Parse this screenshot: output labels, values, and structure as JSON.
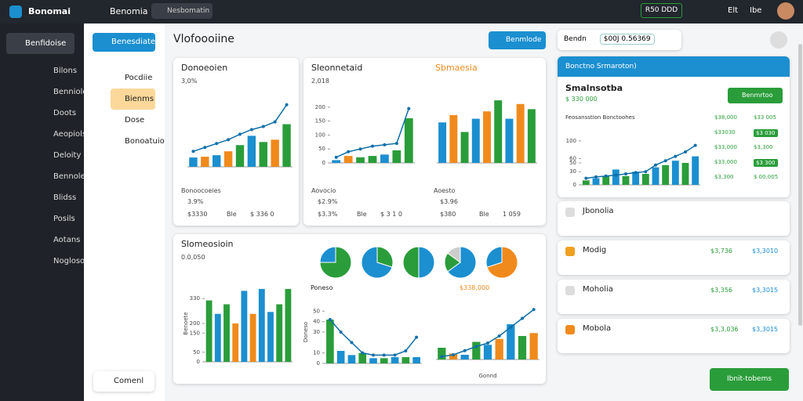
{
  "topbar": {
    "logo": "Bonomai",
    "app": "Benomia",
    "tab": "Nesbomatin",
    "button": "R50 DDD",
    "links": [
      "Elt",
      "Ibe"
    ]
  },
  "sidebar": {
    "title": "Benfidoise",
    "items": [
      "Bilons",
      "Benniolo",
      "Doots",
      "Aeopiols",
      "Deloity",
      "Bennole",
      "Blidss",
      "Posils",
      "Aotans",
      "Noglosotiee"
    ]
  },
  "subnav": {
    "button": "Benesdiate",
    "items": [
      "Pocdiie",
      "Bienms",
      "Dose",
      "Bonoatuio"
    ],
    "footer": "Comenl"
  },
  "main": {
    "title": "Vlofoooiine",
    "button": "Benmlode",
    "search_label": "Bendn",
    "search_value": "$00J 0.56369"
  },
  "charts": [
    {
      "title": "Donoeoien",
      "subtitle": "3,0%",
      "ylim": [
        0,
        100
      ],
      "values": [
        12,
        13,
        15,
        20,
        28,
        40,
        32,
        35,
        55
      ],
      "colors": [
        "#1b8fd0",
        "#f08a1c",
        "#1b8fd0",
        "#f08a1c",
        "#2a9d3a",
        "#1b8fd0",
        "#2a9d3a",
        "#f08a1c",
        "#2a9d3a"
      ],
      "line": [
        20,
        25,
        30,
        35,
        42,
        48,
        52,
        58,
        80
      ],
      "legend_title": "Bonoocoeies",
      "legend": [
        "3.9%",
        "$3330",
        "Ble",
        "$ 336 0"
      ]
    },
    {
      "title": "Sleonnetaid",
      "subtitle": "2,018",
      "ylim": [
        0,
        250
      ],
      "yticks": [
        0,
        50,
        100,
        150,
        200
      ],
      "values": [
        10,
        25,
        20,
        25,
        30,
        45,
        160
      ],
      "colors": [
        "#1b8fd0",
        "#f08a1c",
        "#2a9d3a",
        "#2a9d3a",
        "#1b8fd0",
        "#2a9d3a",
        "#2a9d3a"
      ],
      "line": [
        20,
        40,
        50,
        60,
        65,
        70,
        195
      ],
      "legend_title": "Aovocio",
      "legend": [
        "$2.9%",
        "$3.3%",
        "Ble",
        "$ 3 1 0"
      ]
    },
    {
      "title": "Sbmaesia",
      "subtitle": "",
      "ylim": [
        0,
        100
      ],
      "values": [
        55,
        65,
        42,
        60,
        70,
        85,
        60,
        80,
        73
      ],
      "colors": [
        "#1b8fd0",
        "#f08a1c",
        "#2a9d3a",
        "#1b8fd0",
        "#f08a1c",
        "#2a9d3a",
        "#1b8fd0",
        "#f08a1c",
        "#2a9d3a"
      ],
      "legend_title": "Aoesto",
      "legend": [
        "$3.96",
        "$380",
        "Ble",
        "1 059"
      ]
    },
    {
      "title": "Slomeosioin",
      "subtitle": "0.0,050",
      "ylabel": "Benoete",
      "ylim": [
        0,
        400
      ],
      "yticks": [
        0,
        50,
        150,
        200,
        330
      ],
      "values": [
        320,
        250,
        300,
        200,
        370,
        250,
        380,
        260,
        300,
        380
      ],
      "colors": [
        "#2a9d3a",
        "#1b8fd0",
        "#2a9d3a",
        "#f08a1c",
        "#1b8fd0",
        "#f08a1c",
        "#1b8fd0",
        "#1b8fd0",
        "#2a9d3a",
        "#2a9d3a"
      ]
    },
    {
      "title": "Poneso",
      "ylabel": "Doneso",
      "ylim": [
        0,
        60
      ],
      "yticks": [
        0,
        10,
        30,
        40,
        50
      ],
      "values": [
        42,
        12,
        8,
        10,
        5,
        5,
        6,
        6,
        6
      ],
      "colors": [
        "#2a9d3a",
        "#1b8fd0",
        "#1b8fd0",
        "#2a9d3a",
        "#1b8fd0",
        "#2a9d3a",
        "#1b8fd0",
        "#2a9d3a",
        "#1b8fd0"
      ],
      "line": [
        42,
        30,
        20,
        10,
        8,
        8,
        8,
        12,
        25
      ]
    },
    {
      "title": "$338,000",
      "xlabel": "Gonnd",
      "ylim": [
        0,
        100
      ],
      "values": [
        20,
        10,
        8,
        30,
        25,
        35,
        60,
        40,
        45
      ],
      "colors": [
        "#2a9d3a",
        "#f08a1c",
        "#1b8fd0",
        "#2a9d3a",
        "#1b8fd0",
        "#f08a1c",
        "#1b8fd0",
        "#2a9d3a",
        "#f08a1c"
      ],
      "line": [
        5,
        8,
        15,
        22,
        28,
        40,
        55,
        70,
        85
      ]
    }
  ],
  "pies": [
    {
      "values": [
        75,
        25
      ],
      "colors": [
        "#2a9d3a",
        "#1b8fd0"
      ]
    },
    {
      "values": [
        30,
        70
      ],
      "colors": [
        "#2a9d3a",
        "#1b8fd0"
      ]
    },
    {
      "values": [
        50,
        50
      ],
      "colors": [
        "#1b8fd0",
        "#2a9d3a"
      ]
    },
    {
      "values": [
        65,
        20,
        15
      ],
      "colors": [
        "#1b8fd0",
        "#2a9d3a",
        "#cccccc"
      ]
    },
    {
      "values": [
        70,
        30
      ],
      "colors": [
        "#f08a1c",
        "#1b8fd0"
      ]
    }
  ],
  "panel": {
    "header": "Bonctno Srmaroton)",
    "title": "Smalnsotba",
    "subtitle": "$ 330 000",
    "button": "Benmrtoo",
    "rows": [
      [
        "Feosansstion Bonctoohes",
        "$38,000",
        "$33 005"
      ],
      [
        "",
        "$33030",
        "$3 030"
      ],
      [
        "",
        "$33,000",
        "$3,300"
      ],
      [
        "",
        "$33,000",
        "$3 300"
      ],
      [
        "",
        "$3,300",
        "$ 00,005"
      ]
    ],
    "chart": {
      "ylim": [
        0,
        100
      ],
      "yticks": [
        0,
        30,
        50,
        60,
        100
      ],
      "values": [
        10,
        15,
        20,
        35,
        20,
        30,
        25,
        40,
        45,
        55,
        50,
        65
      ],
      "colors": [
        "#2a9d3a",
        "#1b8fd0",
        "#2a9d3a",
        "#1b8fd0",
        "#2a9d3a",
        "#1b8fd0",
        "#2a9d3a",
        "#1b8fd0",
        "#2a9d3a",
        "#1b8fd0",
        "#2a9d3a",
        "#1b8fd0"
      ],
      "line": [
        15,
        18,
        20,
        22,
        25,
        28,
        30,
        45,
        55,
        65,
        75,
        90
      ]
    },
    "items": [
      {
        "title": "Jbonolia",
        "v1": "",
        "v2": ""
      },
      {
        "title": "Modig",
        "v1": "$3,736",
        "v2": "$3,3010"
      },
      {
        "title": "Moholia",
        "v1": "$3,356",
        "v2": "$3,3015"
      },
      {
        "title": "Mobola",
        "v1": "$3,3,036",
        "v2": "$3,3015"
      }
    ],
    "cta": "Ibnit-tobems"
  }
}
